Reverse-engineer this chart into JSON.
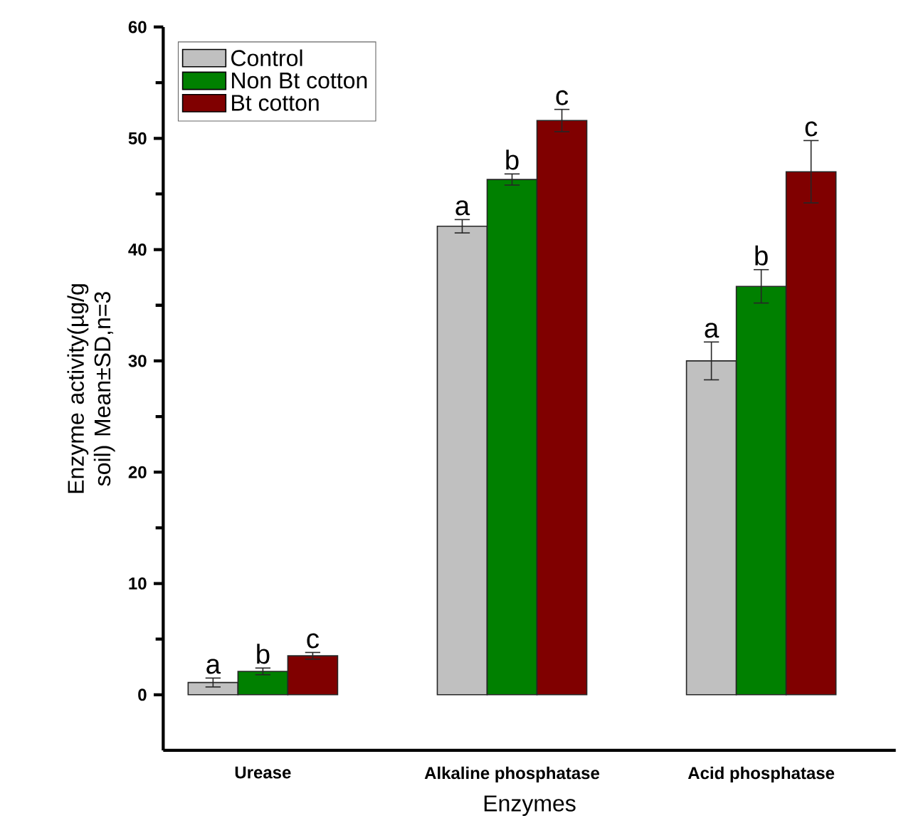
{
  "chart_data": {
    "type": "bar",
    "xlabel": "Enzymes",
    "ylabel": "Enzyme activity(µg/g soil) Mean±SD,n=3",
    "categories": [
      "Urease",
      "Alkaline phosphatase",
      "Acid phosphatase"
    ],
    "series": [
      {
        "name": "Control",
        "color": "#c0c0c0",
        "values": [
          1.1,
          42.1,
          30.0
        ],
        "errors": [
          0.4,
          0.6,
          1.7
        ]
      },
      {
        "name": "Non Bt cotton",
        "color": "#008000",
        "values": [
          2.1,
          46.3,
          36.7
        ],
        "errors": [
          0.3,
          0.5,
          1.5
        ]
      },
      {
        "name": "Bt cotton",
        "color": "#800000",
        "values": [
          3.5,
          51.6,
          47.0
        ],
        "errors": [
          0.3,
          1.0,
          2.8
        ]
      }
    ],
    "ylim": [
      -5,
      60
    ],
    "yticks": [
      0,
      10,
      20,
      30,
      40,
      50,
      60
    ],
    "legend": "top left",
    "annotations": [
      "a",
      "b",
      "c",
      "a",
      "b",
      "c",
      "a",
      "b",
      "c"
    ]
  }
}
